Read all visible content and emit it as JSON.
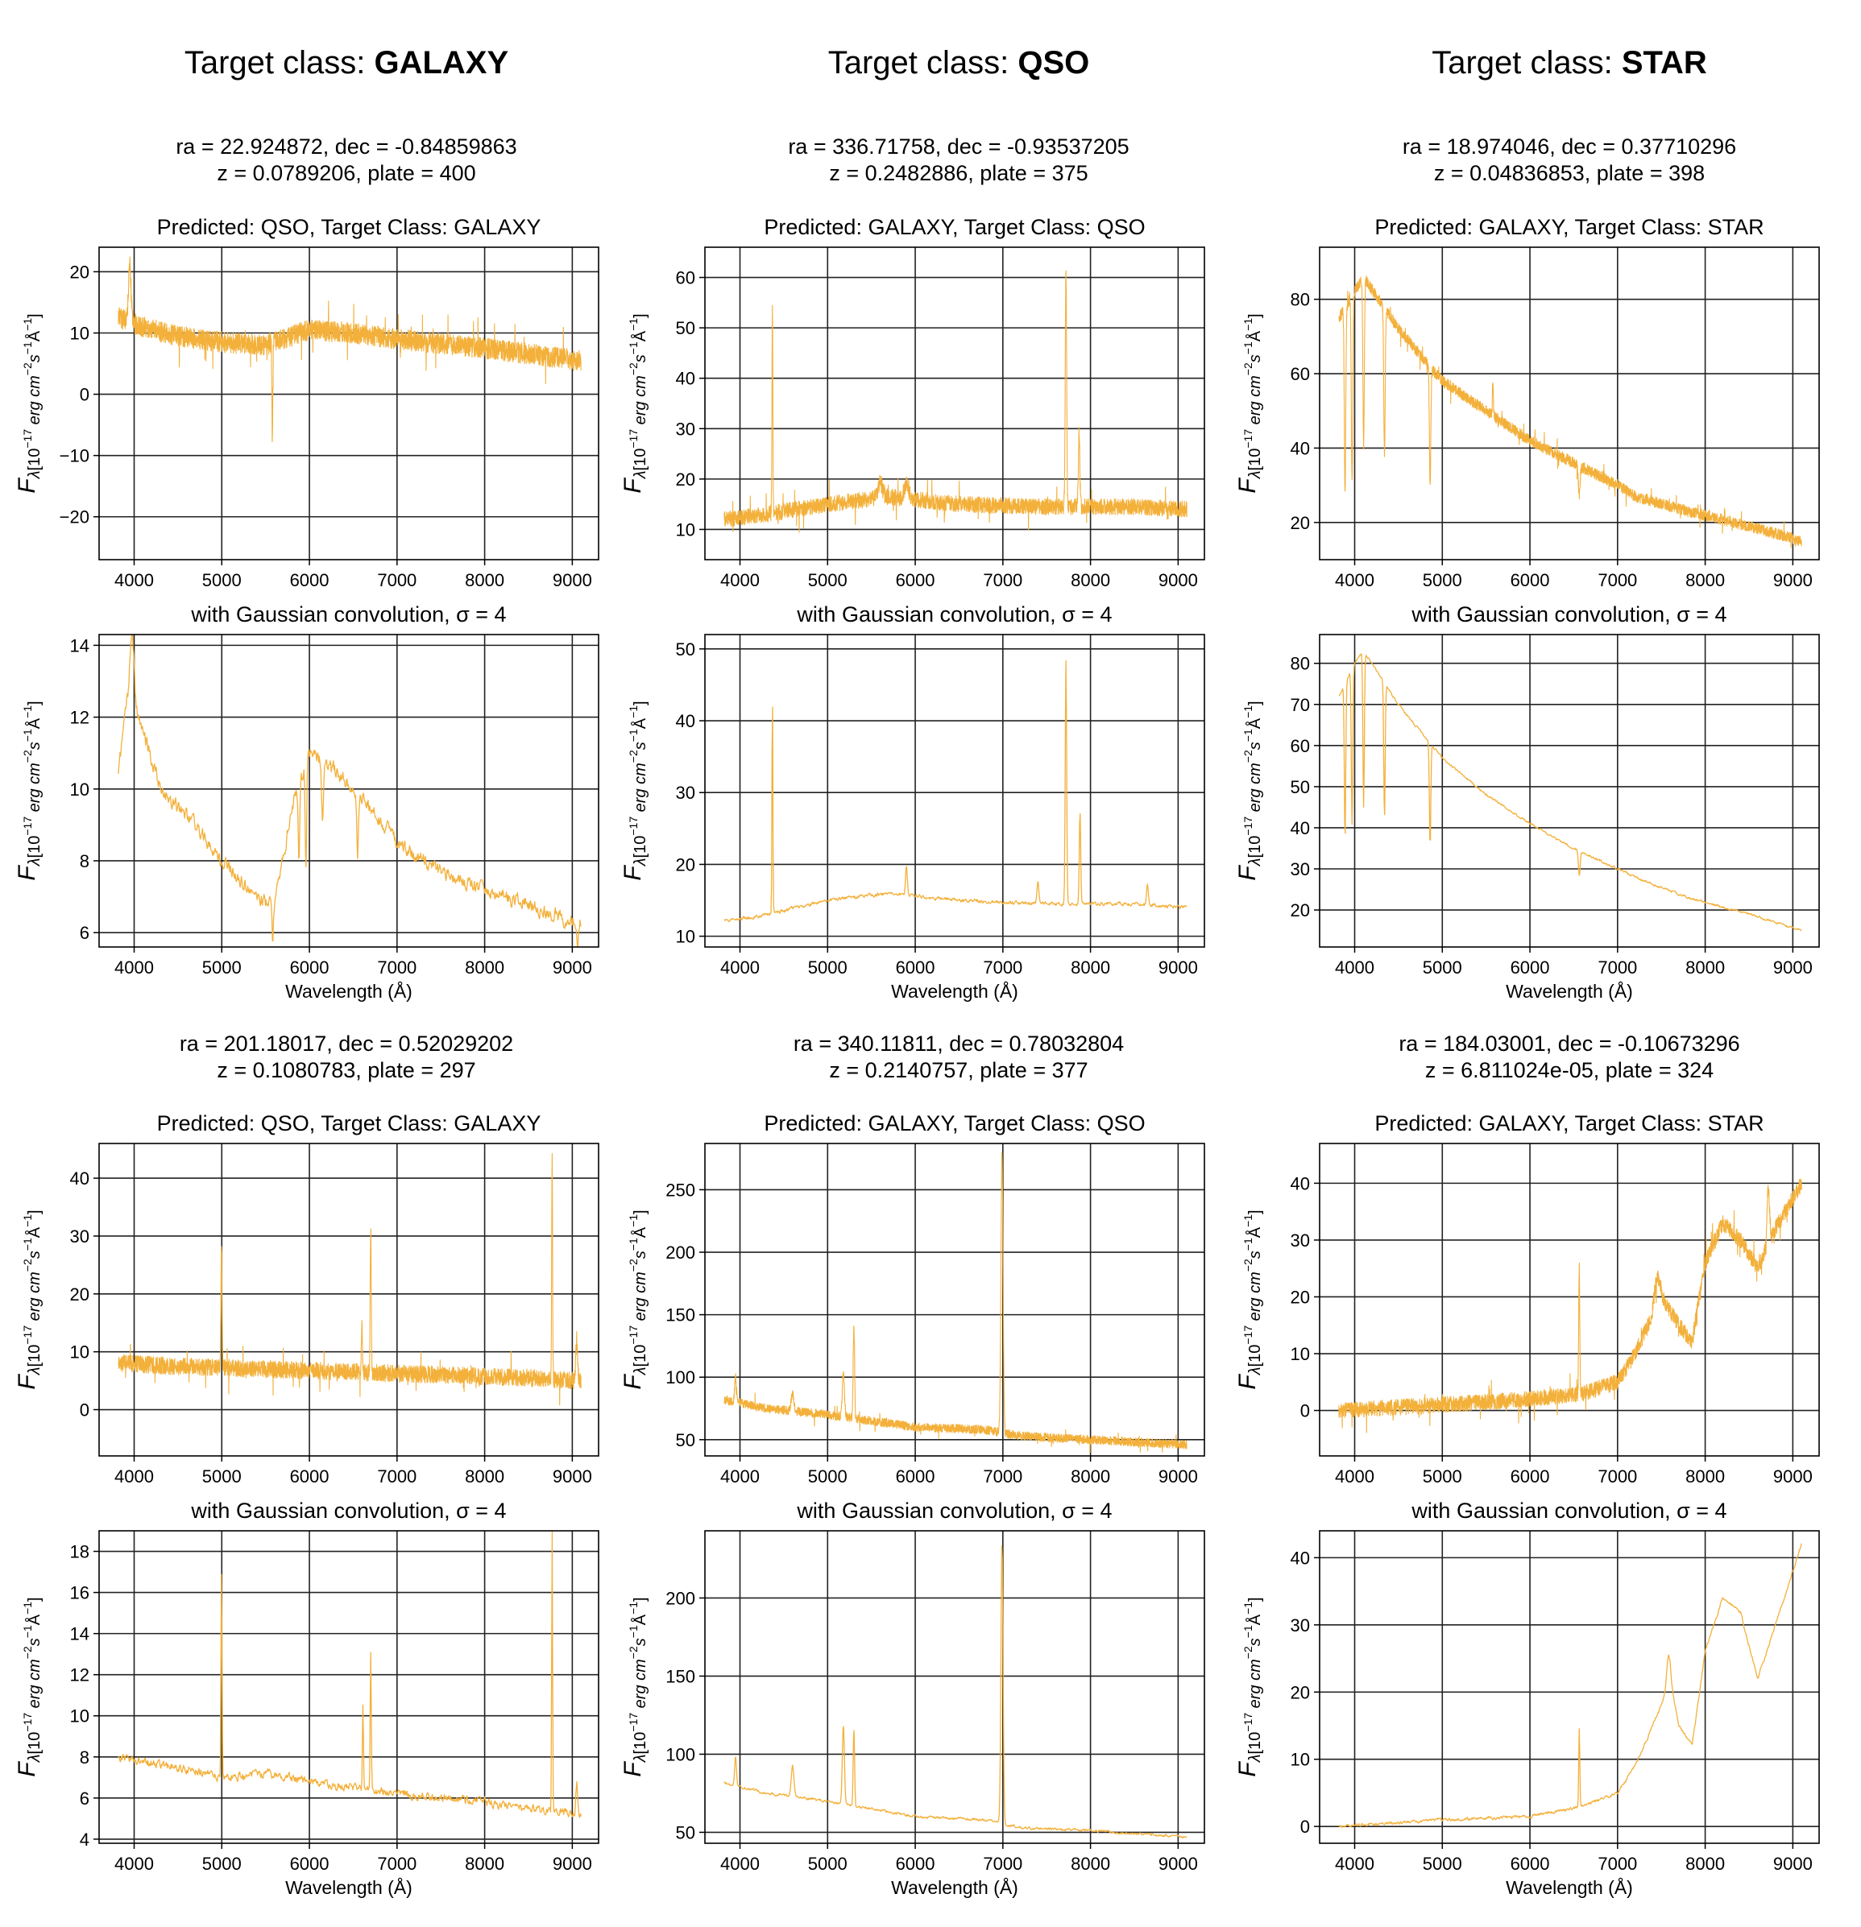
{
  "figure": {
    "columns": [
      {
        "prefix": "Target class: ",
        "name": "GALAXY"
      },
      {
        "prefix": "Target class: ",
        "name": "QSO"
      },
      {
        "prefix": "Target class: ",
        "name": "STAR"
      }
    ],
    "xlabel": "Wavelength (Å)",
    "ylabel": "F_λ[10^-17 erg cm^-2 s^-1 Å^-1]",
    "line_color": "#F3B03A",
    "grid_color": "#222222",
    "smoothed_title": "with Gaussian convolution, σ = 4"
  },
  "chart_data": [
    {
      "id": "r1c1",
      "type": "line",
      "meta_line1": "ra = 22.924872, dec = -0.84859863",
      "meta_line2": "z = 0.0789206, plate = 400",
      "title": "Predicted: QSO, Target Class: GALAXY",
      "xlim": [
        3600,
        9300
      ],
      "ylim": [
        -27,
        24
      ],
      "xticks": [
        4000,
        5000,
        6000,
        7000,
        8000,
        9000
      ],
      "yticks": [
        -20,
        -10,
        0,
        10,
        20
      ],
      "xmin": 3820,
      "xmax": 9100,
      "seed": 11,
      "noise": 1.7,
      "continuum": [
        [
          3820,
          12.5
        ],
        [
          4100,
          11
        ],
        [
          4500,
          9.5
        ],
        [
          5000,
          8.5
        ],
        [
          5500,
          8
        ],
        [
          5800,
          9.5
        ],
        [
          6000,
          10.5
        ],
        [
          6500,
          10
        ],
        [
          7000,
          9
        ],
        [
          8000,
          7.5
        ],
        [
          9100,
          5.5
        ]
      ],
      "features": [
        [
          5577,
          -24,
          6
        ],
        [
          5577,
          9,
          8
        ],
        [
          3950,
          9,
          15
        ]
      ]
    },
    {
      "id": "r1c1s",
      "type": "line",
      "smoothed": true,
      "xlim": [
        3600,
        9300
      ],
      "ylim": [
        5.6,
        14.3
      ],
      "xticks": [
        4000,
        5000,
        6000,
        7000,
        8000,
        9000
      ],
      "yticks": [
        6,
        8,
        10,
        12,
        14
      ],
      "xmin": 3820,
      "xmax": 9100,
      "seed": 12,
      "noise": 0.35,
      "continuum": [
        [
          3820,
          10.5
        ],
        [
          3950,
          13
        ],
        [
          4050,
          12
        ],
        [
          4300,
          10
        ],
        [
          4700,
          9
        ],
        [
          5000,
          8
        ],
        [
          5400,
          7
        ],
        [
          5600,
          6.7
        ],
        [
          5800,
          9.5
        ],
        [
          6000,
          11
        ],
        [
          6300,
          10.5
        ],
        [
          6700,
          9.5
        ],
        [
          7000,
          8.5
        ],
        [
          7500,
          7.7
        ],
        [
          8000,
          7.2
        ],
        [
          8500,
          6.8
        ],
        [
          9000,
          6.3
        ],
        [
          9100,
          6.3
        ]
      ],
      "features": [
        [
          3980,
          1.5,
          20
        ],
        [
          5580,
          -1.2,
          6
        ],
        [
          5880,
          -2.2,
          8
        ],
        [
          5960,
          -3,
          8
        ],
        [
          6150,
          -1.5,
          10
        ],
        [
          6550,
          -1.7,
          10
        ],
        [
          9060,
          -0.8,
          10
        ]
      ]
    },
    {
      "id": "r1c2",
      "type": "line",
      "meta_line1": "ra = 336.71758, dec = -0.93537205",
      "meta_line2": "z = 0.2482886, plate = 375",
      "title": "Predicted: GALAXY, Target Class: QSO",
      "xlim": [
        3600,
        9300
      ],
      "ylim": [
        4,
        66
      ],
      "xticks": [
        4000,
        5000,
        6000,
        7000,
        8000,
        9000
      ],
      "yticks": [
        10,
        20,
        30,
        40,
        50,
        60
      ],
      "xmin": 3820,
      "xmax": 9100,
      "seed": 21,
      "noise": 1.6,
      "continuum": [
        [
          3820,
          12
        ],
        [
          4300,
          13
        ],
        [
          5000,
          15
        ],
        [
          5700,
          16.5
        ],
        [
          6500,
          15
        ],
        [
          7500,
          14.5
        ],
        [
          8500,
          14.5
        ],
        [
          9100,
          14
        ]
      ],
      "features": [
        [
          4370,
          40,
          5
        ],
        [
          7720,
          47,
          8
        ],
        [
          7870,
          15,
          8
        ],
        [
          5600,
          3,
          25
        ],
        [
          5900,
          3,
          25
        ]
      ]
    },
    {
      "id": "r1c2s",
      "type": "line",
      "smoothed": true,
      "xlim": [
        3600,
        9300
      ],
      "ylim": [
        8.5,
        52
      ],
      "xticks": [
        4000,
        5000,
        6000,
        7000,
        8000,
        9000
      ],
      "yticks": [
        10,
        20,
        30,
        40,
        50
      ],
      "xmin": 3820,
      "xmax": 9100,
      "seed": 22,
      "noise": 0.45,
      "continuum": [
        [
          3820,
          12
        ],
        [
          4300,
          13
        ],
        [
          5000,
          15
        ],
        [
          5700,
          16
        ],
        [
          6500,
          15
        ],
        [
          7500,
          14.5
        ],
        [
          8500,
          14.5
        ],
        [
          9100,
          14
        ]
      ],
      "features": [
        [
          4370,
          31,
          5
        ],
        [
          7720,
          34,
          8
        ],
        [
          7880,
          13,
          8
        ],
        [
          5900,
          4,
          10
        ],
        [
          7400,
          3,
          10
        ],
        [
          8650,
          3,
          10
        ]
      ]
    },
    {
      "id": "r1c3",
      "type": "line",
      "meta_line1": "ra = 18.974046, dec = 0.37710296",
      "meta_line2": "z = 0.04836853, plate = 398",
      "title": "Predicted: GALAXY, Target Class: STAR",
      "xlim": [
        3600,
        9300
      ],
      "ylim": [
        10,
        94
      ],
      "xticks": [
        4000,
        5000,
        6000,
        7000,
        8000,
        9000
      ],
      "yticks": [
        20,
        40,
        60,
        80
      ],
      "xmin": 3820,
      "xmax": 9100,
      "seed": 31,
      "noise": 1.5,
      "continuum": [
        [
          3820,
          75
        ],
        [
          4000,
          82
        ],
        [
          4100,
          86
        ],
        [
          4500,
          72
        ],
        [
          5000,
          58
        ],
        [
          5500,
          50
        ],
        [
          6000,
          42
        ],
        [
          6500,
          36
        ],
        [
          7000,
          30
        ],
        [
          7200,
          27
        ],
        [
          7800,
          23
        ],
        [
          8500,
          19
        ],
        [
          9100,
          15
        ]
      ],
      "features": [
        [
          3890,
          -50,
          8
        ],
        [
          3970,
          -50,
          8
        ],
        [
          4102,
          -45,
          8
        ],
        [
          4340,
          -40,
          8
        ],
        [
          4861,
          -32,
          8
        ],
        [
          6563,
          -8,
          10
        ],
        [
          5577,
          10,
          5
        ]
      ]
    },
    {
      "id": "r1c3s",
      "type": "line",
      "smoothed": true,
      "xlim": [
        3600,
        9300
      ],
      "ylim": [
        11,
        87
      ],
      "xticks": [
        4000,
        5000,
        6000,
        7000,
        8000,
        9000
      ],
      "yticks": [
        20,
        30,
        40,
        50,
        60,
        70,
        80
      ],
      "xmin": 3820,
      "xmax": 9100,
      "seed": 32,
      "noise": 0.5,
      "continuum": [
        [
          3820,
          72
        ],
        [
          4000,
          80
        ],
        [
          4100,
          83
        ],
        [
          4500,
          70
        ],
        [
          5000,
          57
        ],
        [
          5500,
          48
        ],
        [
          6000,
          41
        ],
        [
          6500,
          35
        ],
        [
          7000,
          30
        ],
        [
          7200,
          28
        ],
        [
          7800,
          23
        ],
        [
          8500,
          19
        ],
        [
          9100,
          15
        ]
      ],
      "features": [
        [
          3890,
          -38,
          8
        ],
        [
          3970,
          -38,
          8
        ],
        [
          4102,
          -38,
          8
        ],
        [
          4340,
          -33,
          8
        ],
        [
          4861,
          -25,
          8
        ],
        [
          6563,
          -6,
          10
        ]
      ]
    },
    {
      "id": "r2c1",
      "type": "line",
      "meta_line1": "ra = 201.18017, dec = 0.52029202",
      "meta_line2": "z = 0.1080783, plate = 297",
      "title": "Predicted: QSO, Target Class: GALAXY",
      "xlim": [
        3600,
        9300
      ],
      "ylim": [
        -8,
        46
      ],
      "xticks": [
        4000,
        5000,
        6000,
        7000,
        8000,
        9000
      ],
      "yticks": [
        0,
        10,
        20,
        30,
        40
      ],
      "xmin": 3820,
      "xmax": 9100,
      "seed": 41,
      "noise": 1.5,
      "continuum": [
        [
          3820,
          8
        ],
        [
          4500,
          7.5
        ],
        [
          5500,
          7
        ],
        [
          6500,
          6.5
        ],
        [
          7500,
          6
        ],
        [
          8500,
          5.5
        ],
        [
          9100,
          5
        ]
      ],
      "features": [
        [
          4997,
          21,
          6
        ],
        [
          6700,
          25,
          6
        ],
        [
          6600,
          8,
          6
        ],
        [
          8770,
          38,
          5
        ],
        [
          9050,
          7,
          10
        ]
      ]
    },
    {
      "id": "r2c1s",
      "type": "line",
      "smoothed": true,
      "xlim": [
        3600,
        9300
      ],
      "ylim": [
        3.8,
        19
      ],
      "xticks": [
        4000,
        5000,
        6000,
        7000,
        8000,
        9000
      ],
      "yticks": [
        4,
        6,
        8,
        10,
        12,
        14,
        16,
        18
      ],
      "xmin": 3820,
      "xmax": 9100,
      "seed": 42,
      "noise": 0.35,
      "continuum": [
        [
          3820,
          8
        ],
        [
          4500,
          7.5
        ],
        [
          5000,
          7
        ],
        [
          5500,
          7.2
        ],
        [
          6000,
          6.8
        ],
        [
          6500,
          6.5
        ],
        [
          7000,
          6.2
        ],
        [
          7500,
          6
        ],
        [
          8000,
          5.8
        ],
        [
          8500,
          5.5
        ],
        [
          9100,
          5.2
        ]
      ],
      "features": [
        [
          4997,
          10,
          6
        ],
        [
          6700,
          6.5,
          6
        ],
        [
          6610,
          4,
          6
        ],
        [
          8770,
          13.5,
          5
        ],
        [
          9050,
          1.5,
          10
        ]
      ]
    },
    {
      "id": "r2c2",
      "type": "line",
      "meta_line1": "ra = 340.11811, dec = 0.78032804",
      "meta_line2": "z = 0.2140757, plate = 377",
      "title": "Predicted: GALAXY, Target Class: QSO",
      "xlim": [
        3600,
        9300
      ],
      "ylim": [
        37,
        287
      ],
      "xticks": [
        4000,
        5000,
        6000,
        7000,
        8000,
        9000
      ],
      "yticks": [
        50,
        100,
        150,
        200,
        250
      ],
      "xmin": 3820,
      "xmax": 9100,
      "seed": 51,
      "noise": 3.5,
      "continuum": [
        [
          3820,
          82
        ],
        [
          4300,
          75
        ],
        [
          5000,
          70
        ],
        [
          5500,
          65
        ],
        [
          6000,
          60
        ],
        [
          6800,
          58
        ],
        [
          7200,
          53
        ],
        [
          8000,
          50
        ],
        [
          9100,
          46
        ]
      ],
      "features": [
        [
          6990,
          222,
          12
        ],
        [
          5180,
          35,
          12
        ],
        [
          5300,
          75,
          8
        ],
        [
          4600,
          15,
          15
        ],
        [
          3950,
          20,
          10
        ]
      ]
    },
    {
      "id": "r2c2s",
      "type": "line",
      "smoothed": true,
      "xlim": [
        3600,
        9300
      ],
      "ylim": [
        43,
        243
      ],
      "xticks": [
        4000,
        5000,
        6000,
        7000,
        8000,
        9000
      ],
      "yticks": [
        50,
        100,
        150,
        200
      ],
      "xmin": 3820,
      "xmax": 9100,
      "seed": 52,
      "noise": 1.5,
      "continuum": [
        [
          3820,
          82
        ],
        [
          4300,
          75
        ],
        [
          5000,
          70
        ],
        [
          5500,
          65
        ],
        [
          6000,
          60
        ],
        [
          6800,
          58
        ],
        [
          7200,
          53
        ],
        [
          8000,
          51
        ],
        [
          9100,
          47
        ]
      ],
      "features": [
        [
          6990,
          180,
          12
        ],
        [
          5180,
          50,
          12
        ],
        [
          5300,
          50,
          8
        ],
        [
          4600,
          20,
          15
        ],
        [
          3950,
          18,
          10
        ]
      ]
    },
    {
      "id": "r2c3",
      "type": "line",
      "meta_line1": "ra = 184.03001, dec = -0.10673296",
      "meta_line2": "z = 6.811024e-05, plate = 324",
      "title": "Predicted: GALAXY, Target Class: STAR",
      "xlim": [
        3600,
        9300
      ],
      "ylim": [
        -8,
        47
      ],
      "xticks": [
        4000,
        5000,
        6000,
        7000,
        8000,
        9000
      ],
      "yticks": [
        0,
        10,
        20,
        30,
        40
      ],
      "xmin": 3820,
      "xmax": 9100,
      "seed": 61,
      "noise": 1.4,
      "continuum": [
        [
          3820,
          0
        ],
        [
          5000,
          1
        ],
        [
          6000,
          2
        ],
        [
          6600,
          3
        ],
        [
          7000,
          5
        ],
        [
          7200,
          10
        ],
        [
          7500,
          20
        ],
        [
          7700,
          15
        ],
        [
          7850,
          12
        ],
        [
          8000,
          26
        ],
        [
          8200,
          33
        ],
        [
          8400,
          30
        ],
        [
          8600,
          25
        ],
        [
          8800,
          32
        ],
        [
          9100,
          40
        ]
      ],
      "features": [
        [
          6563,
          22,
          6
        ],
        [
          7450,
          5,
          30
        ],
        [
          8720,
          10,
          15
        ]
      ]
    },
    {
      "id": "r2c3s",
      "type": "line",
      "smoothed": true,
      "xlim": [
        3600,
        9300
      ],
      "ylim": [
        -2.5,
        44
      ],
      "xticks": [
        4000,
        5000,
        6000,
        7000,
        8000,
        9000
      ],
      "yticks": [
        0,
        10,
        20,
        30,
        40
      ],
      "xmin": 3820,
      "xmax": 9100,
      "seed": 62,
      "noise": 0.4,
      "continuum": [
        [
          3820,
          0
        ],
        [
          5000,
          1
        ],
        [
          6000,
          1.5
        ],
        [
          6600,
          3
        ],
        [
          7000,
          5
        ],
        [
          7200,
          9
        ],
        [
          7500,
          18
        ],
        [
          7600,
          22
        ],
        [
          7700,
          15
        ],
        [
          7850,
          12
        ],
        [
          8000,
          26
        ],
        [
          8200,
          34
        ],
        [
          8400,
          32
        ],
        [
          8600,
          22
        ],
        [
          8800,
          30
        ],
        [
          9100,
          42
        ]
      ],
      "features": [
        [
          6563,
          12,
          6
        ],
        [
          7580,
          4,
          20
        ]
      ]
    }
  ]
}
